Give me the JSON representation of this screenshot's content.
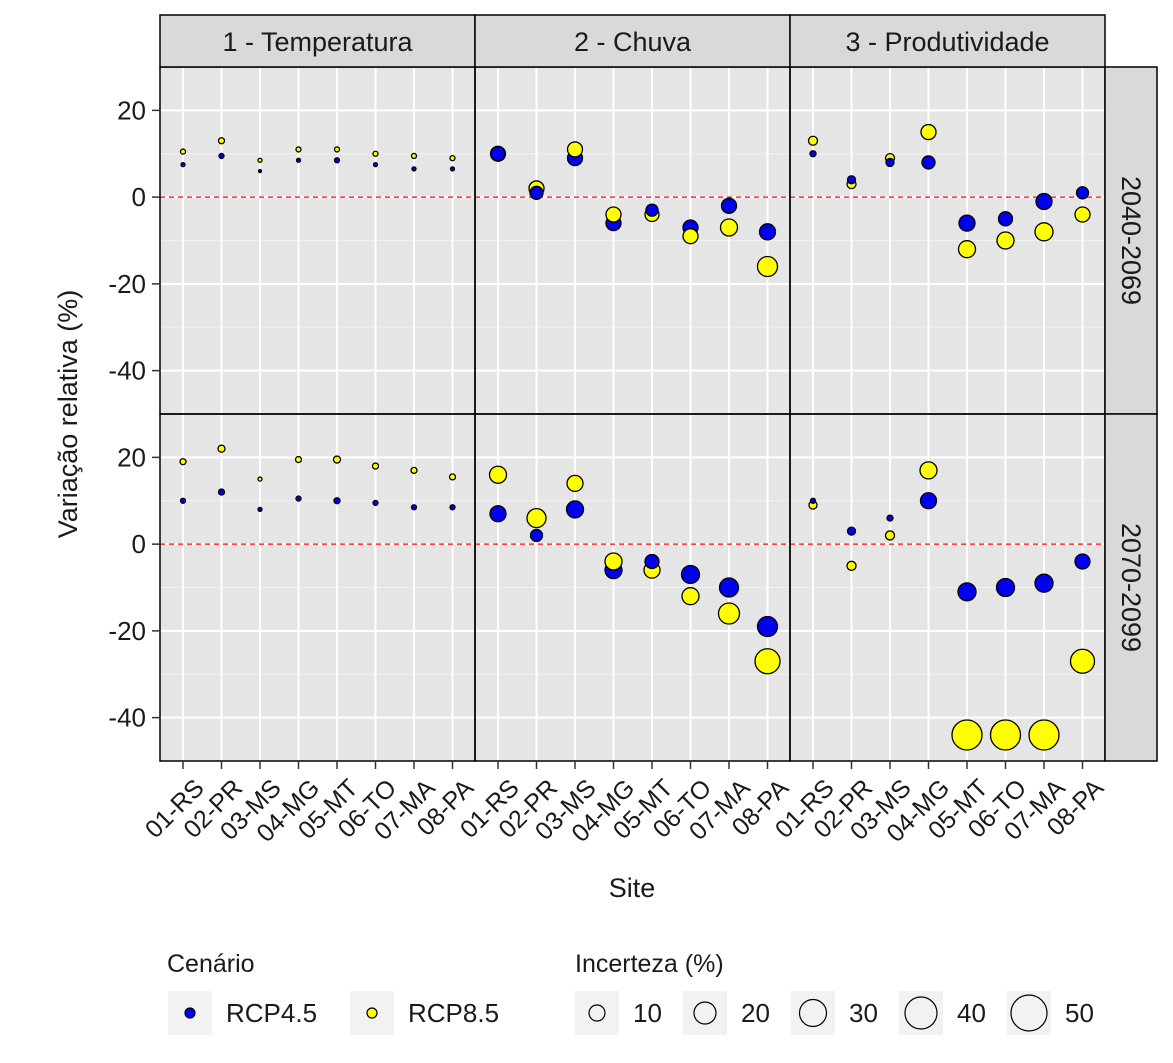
{
  "chart_data": {
    "type": "scatter",
    "xlabel": "Site",
    "ylabel": "Variação relativa (%)",
    "ylim": [
      -50,
      30
    ],
    "yticks": [
      20,
      0,
      -20,
      -40
    ],
    "reference_line": 0,
    "grid": true,
    "categories": [
      "01-RS",
      "02-PR",
      "03-MS",
      "04-MG",
      "05-MT",
      "06-TO",
      "07-MA",
      "08-PA"
    ],
    "facet_cols": [
      "1 - Temperatura",
      "2 - Chuva",
      "3 - Produtividade"
    ],
    "facet_rows": [
      "2040-2069",
      "2070-2099"
    ],
    "series_meta": [
      {
        "name": "RCP4.5",
        "color": "#0000ee"
      },
      {
        "name": "RCP8.5",
        "color": "#ffff00"
      }
    ],
    "panels": [
      {
        "col": 0,
        "row": 0,
        "RCP4.5": {
          "y": [
            7.5,
            9.5,
            6,
            8.5,
            8.5,
            7.5,
            6.5,
            6.5
          ],
          "size": [
            4,
            5,
            3,
            4,
            5,
            4,
            4,
            4
          ]
        },
        "RCP8.5": {
          "y": [
            10.5,
            13,
            8.5,
            11,
            11,
            10,
            9.5,
            9
          ],
          "size": [
            5,
            6,
            4,
            5,
            5,
            5,
            5,
            5
          ]
        }
      },
      {
        "col": 1,
        "row": 0,
        "RCP4.5": {
          "y": [
            10,
            1,
            9,
            -6,
            -3,
            -7,
            -2,
            -8
          ],
          "size": [
            14,
            13,
            15,
            15,
            12,
            15,
            15,
            16
          ]
        },
        "RCP8.5": {
          "y": [
            10,
            2,
            11,
            -4,
            -4,
            -9,
            -7,
            -16
          ],
          "size": [
            15,
            15,
            15,
            15,
            14,
            15,
            17,
            20
          ]
        }
      },
      {
        "col": 2,
        "row": 0,
        "RCP4.5": {
          "y": [
            10,
            4,
            8,
            8,
            -6,
            -5,
            -1,
            1
          ],
          "size": [
            6,
            8,
            8,
            13,
            16,
            14,
            16,
            12
          ]
        },
        "RCP8.5": {
          "y": [
            13,
            3,
            9,
            15,
            -12,
            -10,
            -8,
            -4
          ],
          "size": [
            9,
            9,
            9,
            15,
            17,
            17,
            18,
            15
          ]
        }
      },
      {
        "col": 0,
        "row": 1,
        "RCP4.5": {
          "y": [
            10,
            12,
            8,
            10.5,
            10,
            9.5,
            8.5,
            8.5
          ],
          "size": [
            5,
            6,
            4,
            5,
            6,
            5,
            5,
            5
          ]
        },
        "RCP8.5": {
          "y": [
            19,
            22,
            15,
            19.5,
            19.5,
            18,
            17,
            15.5
          ],
          "size": [
            6,
            7,
            4,
            6,
            7,
            6,
            6,
            6
          ]
        }
      },
      {
        "col": 1,
        "row": 1,
        "RCP4.5": {
          "y": [
            7,
            2,
            8,
            -6,
            -4,
            -7,
            -10,
            -19
          ],
          "size": [
            16,
            12,
            17,
            17,
            14,
            18,
            19,
            20
          ]
        },
        "RCP8.5": {
          "y": [
            16,
            6,
            14,
            -4,
            -6,
            -12,
            -16,
            -27
          ],
          "size": [
            17,
            19,
            16,
            17,
            16,
            17,
            21,
            25
          ]
        }
      },
      {
        "col": 2,
        "row": 1,
        "RCP4.5": {
          "y": [
            10,
            3,
            6,
            10,
            -11,
            -10,
            -9,
            -4
          ],
          "size": [
            5,
            8,
            6,
            16,
            18,
            18,
            18,
            15
          ]
        },
        "RCP8.5": {
          "y": [
            9,
            -5,
            2,
            17,
            -44,
            -44,
            -44,
            -27
          ],
          "size": [
            8,
            9,
            9,
            17,
            30,
            30,
            30,
            24
          ]
        }
      }
    ],
    "legend": {
      "position": "bottom",
      "color_title": "Cenário",
      "color_items": [
        "RCP4.5",
        "RCP8.5"
      ],
      "size_title": "Incerteza (%)",
      "size_items": [
        10,
        20,
        30,
        40,
        50
      ]
    }
  }
}
